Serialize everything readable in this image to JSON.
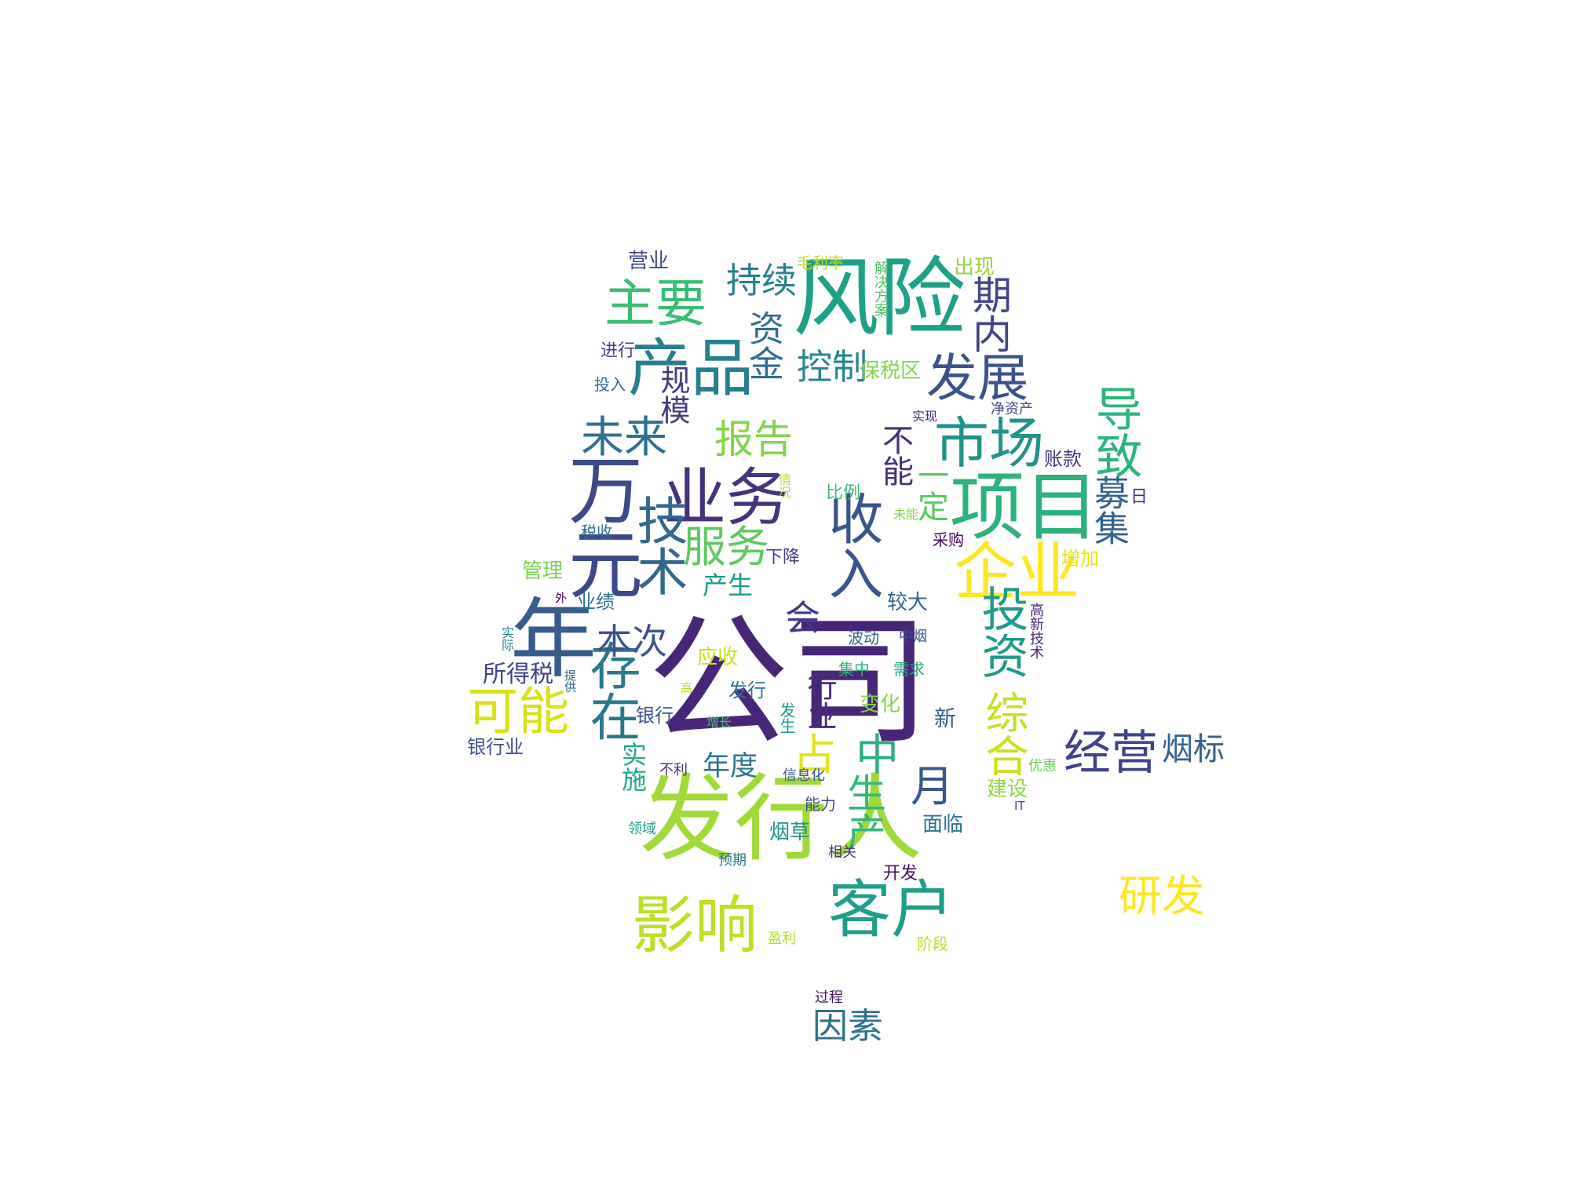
{
  "words": [
    {
      "text": "公司",
      "color": "#482677"
    },
    {
      "text": "发行人",
      "color": "#a0da39"
    },
    {
      "text": "风险",
      "color": "#1fa187"
    },
    {
      "text": "年",
      "color": "#365c8d"
    },
    {
      "text": "万元",
      "color": "#3e4989"
    },
    {
      "text": "项目",
      "color": "#2db27d"
    },
    {
      "text": "业务",
      "color": "#46327e"
    },
    {
      "text": "产品",
      "color": "#277f8e"
    },
    {
      "text": "市场",
      "color": "#21918c"
    },
    {
      "text": "企业",
      "color": "#fde725"
    },
    {
      "text": "客户",
      "color": "#1f9e89"
    },
    {
      "text": "影响",
      "color": "#bddf26"
    },
    {
      "text": "收入",
      "color": "#39568c"
    },
    {
      "text": "技术",
      "color": "#31688e"
    },
    {
      "text": "投资",
      "color": "#1e9b8a"
    },
    {
      "text": "存在",
      "color": "#2a788e"
    },
    {
      "text": "可能",
      "color": "#d8e219"
    },
    {
      "text": "主要",
      "color": "#3dbc74"
    },
    {
      "text": "发展",
      "color": "#3b528b"
    },
    {
      "text": "导致",
      "color": "#2fb47c"
    },
    {
      "text": "经营",
      "color": "#404387"
    },
    {
      "text": "未来",
      "color": "#2c728e"
    },
    {
      "text": "服务",
      "color": "#5ec962"
    },
    {
      "text": "报告",
      "color": "#84d44b"
    },
    {
      "text": "持续",
      "color": "#26818e"
    },
    {
      "text": "资金",
      "color": "#2e6f8e"
    },
    {
      "text": "控制",
      "color": "#25858e"
    },
    {
      "text": "期内",
      "color": "#414487"
    },
    {
      "text": "募集",
      "color": "#33638d"
    },
    {
      "text": "研发",
      "color": "#fde725"
    },
    {
      "text": "综合",
      "color": "#c8e020"
    },
    {
      "text": "生产",
      "color": "#35b779"
    },
    {
      "text": "月",
      "color": "#38588c"
    },
    {
      "text": "因素",
      "color": "#2c718e"
    },
    {
      "text": "本次",
      "color": "#3a538b"
    },
    {
      "text": "中",
      "color": "#29af7f"
    },
    {
      "text": "占",
      "color": "#e2e418"
    },
    {
      "text": "会",
      "color": "#443983"
    },
    {
      "text": "一定",
      "color": "#5ac864"
    },
    {
      "text": "不能",
      "color": "#472f7d"
    },
    {
      "text": "烟标",
      "color": "#34618d"
    },
    {
      "text": "规模",
      "color": "#443a83"
    },
    {
      "text": "行业",
      "color": "#472d7b"
    },
    {
      "text": "年度",
      "color": "#2a768e"
    },
    {
      "text": "产生",
      "color": "#1f988b"
    },
    {
      "text": "实施",
      "color": "#24aa83"
    },
    {
      "text": "所得税",
      "color": "#414487"
    },
    {
      "text": "银行业",
      "color": "#3b528b"
    },
    {
      "text": "管理",
      "color": "#7ad151"
    },
    {
      "text": "营业",
      "color": "#3f4788"
    },
    {
      "text": "进行",
      "color": "#433e85"
    },
    {
      "text": "投入",
      "color": "#2d708e"
    },
    {
      "text": "毛利率",
      "color": "#bddf26"
    },
    {
      "text": "解决方案",
      "color": "#52c569"
    },
    {
      "text": "出现",
      "color": "#93d741"
    },
    {
      "text": "保税区",
      "color": "#84d44b"
    },
    {
      "text": "实现",
      "color": "#482878"
    },
    {
      "text": "净资产",
      "color": "#3e4a89"
    },
    {
      "text": "账款",
      "color": "#46337e"
    },
    {
      "text": "日",
      "color": "#46307e"
    },
    {
      "text": "增加",
      "color": "#e5e419"
    },
    {
      "text": "比例",
      "color": "#3dbc74"
    },
    {
      "text": "情况",
      "color": "#bade28"
    },
    {
      "text": "未能",
      "color": "#86d549"
    },
    {
      "text": "采购",
      "color": "#450457"
    },
    {
      "text": "下降",
      "color": "#433d84"
    },
    {
      "text": "税收",
      "color": "#2e6e8e"
    },
    {
      "text": "较大",
      "color": "#31678e"
    },
    {
      "text": "高新技术",
      "color": "#472c7a"
    },
    {
      "text": "波动",
      "color": "#32648e"
    },
    {
      "text": "中烟",
      "color": "#3b518b"
    },
    {
      "text": "业绩",
      "color": "#2d718e"
    },
    {
      "text": "外",
      "color": "#440154"
    },
    {
      "text": "实际",
      "color": "#25848e"
    },
    {
      "text": "应收",
      "color": "#cae11f"
    },
    {
      "text": "集中",
      "color": "#2db27d"
    },
    {
      "text": "需求",
      "color": "#26ad81"
    },
    {
      "text": "提供",
      "color": "#31678e"
    },
    {
      "text": "高",
      "color": "#b5de2b"
    },
    {
      "text": "发行",
      "color": "#2c738e"
    },
    {
      "text": "变化",
      "color": "#84d44b"
    },
    {
      "text": "银行",
      "color": "#3a548c"
    },
    {
      "text": "增长",
      "color": "#46c06f"
    },
    {
      "text": "发生",
      "color": "#1f9a8a"
    },
    {
      "text": "新",
      "color": "#35608d"
    },
    {
      "text": "不利",
      "color": "#46327e"
    },
    {
      "text": "信息化",
      "color": "#39558c"
    },
    {
      "text": "优惠",
      "color": "#6ece58"
    },
    {
      "text": "建设",
      "color": "#90d743"
    },
    {
      "text": "IT",
      "color": "#404588"
    },
    {
      "text": "能力",
      "color": "#3e4c8a"
    },
    {
      "text": "烟草",
      "color": "#21918c"
    },
    {
      "text": "面临",
      "color": "#2a768e"
    },
    {
      "text": "领域",
      "color": "#1fa088"
    },
    {
      "text": "相关",
      "color": "#453781"
    },
    {
      "text": "预期",
      "color": "#2c728e"
    },
    {
      "text": "开发",
      "color": "#471365"
    },
    {
      "text": "盈利",
      "color": "#b5de2b"
    },
    {
      "text": "阶段",
      "color": "#bade28"
    },
    {
      "text": "过程",
      "color": "#481769"
    }
  ]
}
